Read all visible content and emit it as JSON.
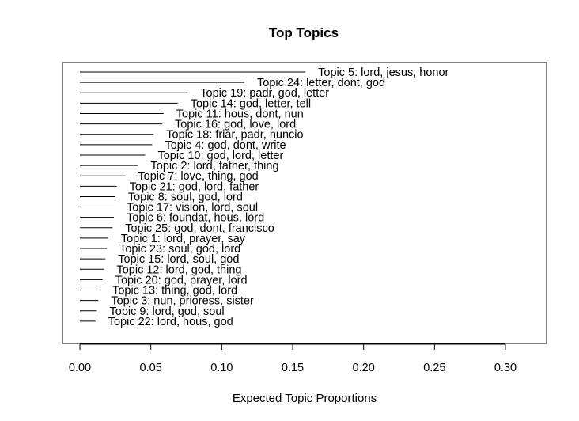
{
  "chart_data": {
    "type": "bar",
    "orientation": "horizontal",
    "title": "Top Topics",
    "xlabel": "Expected Topic Proportions",
    "xlim": [
      -0.012,
      0.33
    ],
    "xticks": [
      0.0,
      0.05,
      0.1,
      0.15,
      0.2,
      0.25,
      0.3
    ],
    "xtick_labels": [
      "0.00",
      "0.05",
      "0.10",
      "0.15",
      "0.20",
      "0.25",
      "0.30"
    ],
    "grid": false,
    "categories": [
      "Topic 5: lord, jesus, honor",
      "Topic 24: letter, dont, god",
      "Topic 19: padr, god, letter",
      "Topic 14: god, letter, tell",
      "Topic 11: hous, dont, nun",
      "Topic 16: god, love, lord",
      "Topic 18: friar, padr, nuncio",
      "Topic 4: god, dont, write",
      "Topic 10: god, lord, letter",
      "Topic 2: lord, father, thing",
      "Topic 7: love, thing, god",
      "Topic 21: god, lord, father",
      "Topic 8: soul, god, lord",
      "Topic 17: vision, lord, soul",
      "Topic 6: foundat, hous, lord",
      "Topic 25: god, dont, francisco",
      "Topic 1: lord, prayer, say",
      "Topic 23: soul, god, lord",
      "Topic 15: lord, soul, god",
      "Topic 12: lord, god, thing",
      "Topic 20: god, prayer, lord",
      "Topic 13: thing, god, lord",
      "Topic 3: nun, prioress, sister",
      "Topic 9: lord, god, soul",
      "Topic 22: lord, hous, god"
    ],
    "values": [
      0.159,
      0.116,
      0.076,
      0.069,
      0.059,
      0.058,
      0.052,
      0.051,
      0.046,
      0.041,
      0.032,
      0.026,
      0.025,
      0.024,
      0.024,
      0.023,
      0.02,
      0.019,
      0.018,
      0.017,
      0.016,
      0.014,
      0.013,
      0.012,
      0.011
    ]
  }
}
